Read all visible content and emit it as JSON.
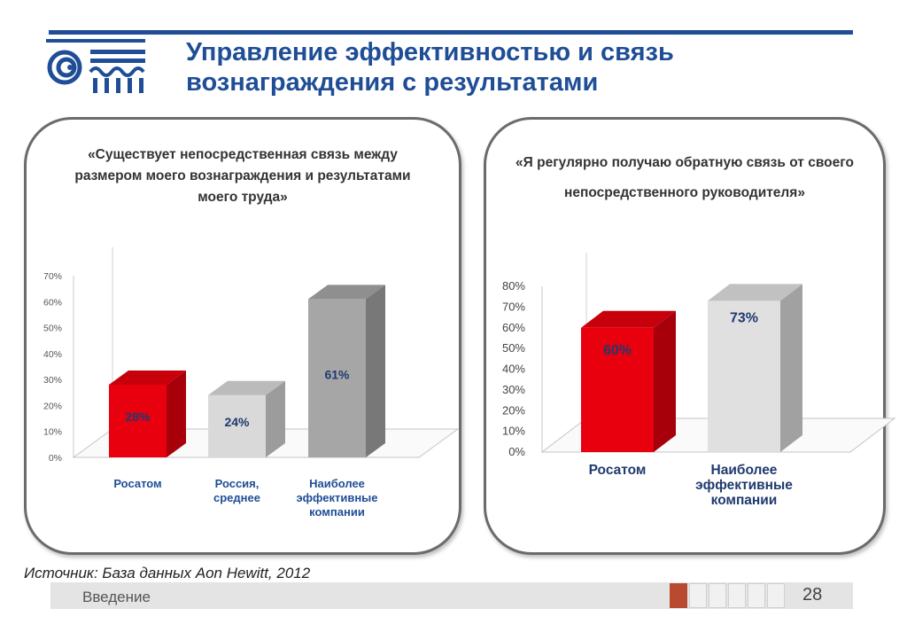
{
  "header": {
    "title_line1": "Управление эффективностью и связь",
    "title_line2": "вознаграждения с результатами"
  },
  "chart_data": [
    {
      "type": "bar",
      "title": "«Существует непосредственная связь между размером моего вознаграждения и результатами моего труда»",
      "title_lines": [
        "«Существует непосредственная связь между",
        "размером моего вознаграждения и результатами",
        "моего труда»"
      ],
      "categories": [
        [
          "Росатом"
        ],
        [
          "Россия,",
          "среднее"
        ],
        [
          "Наиболее",
          "эффективные",
          "компании"
        ]
      ],
      "values": [
        28,
        24,
        61
      ],
      "value_labels": [
        "28%",
        "24%",
        "61%"
      ],
      "ylim": [
        0,
        70
      ],
      "yticks": [
        "0%",
        "10%",
        "20%",
        "30%",
        "40%",
        "50%",
        "60%",
        "70%"
      ],
      "bar_colors": [
        "#e8000e",
        "#d9d9d9",
        "#a6a6a6"
      ]
    },
    {
      "type": "bar",
      "title": "«Я регулярно получаю обратную связь от своего непосредственного руководителя»",
      "title_lines": [
        "«Я регулярно получаю обратную связь от своего",
        "непосредственного руководителя»"
      ],
      "categories": [
        [
          "Росатом"
        ],
        [
          "Наиболее",
          "эффективные",
          "компании"
        ]
      ],
      "values": [
        60,
        73
      ],
      "value_labels": [
        "60%",
        "73%"
      ],
      "ylim": [
        0,
        80
      ],
      "yticks": [
        "0%",
        "10%",
        "20%",
        "30%",
        "40%",
        "50%",
        "60%",
        "70%",
        "80%"
      ],
      "bar_colors": [
        "#e8000e",
        "#e0e0e0"
      ]
    }
  ],
  "source": "Источник: База данных Aon Hewitt, 2012",
  "footer": {
    "section": "Введение",
    "page": "28"
  },
  "colors": {
    "brand_blue": "#1f4e96",
    "accent_red": "#b84a32"
  }
}
